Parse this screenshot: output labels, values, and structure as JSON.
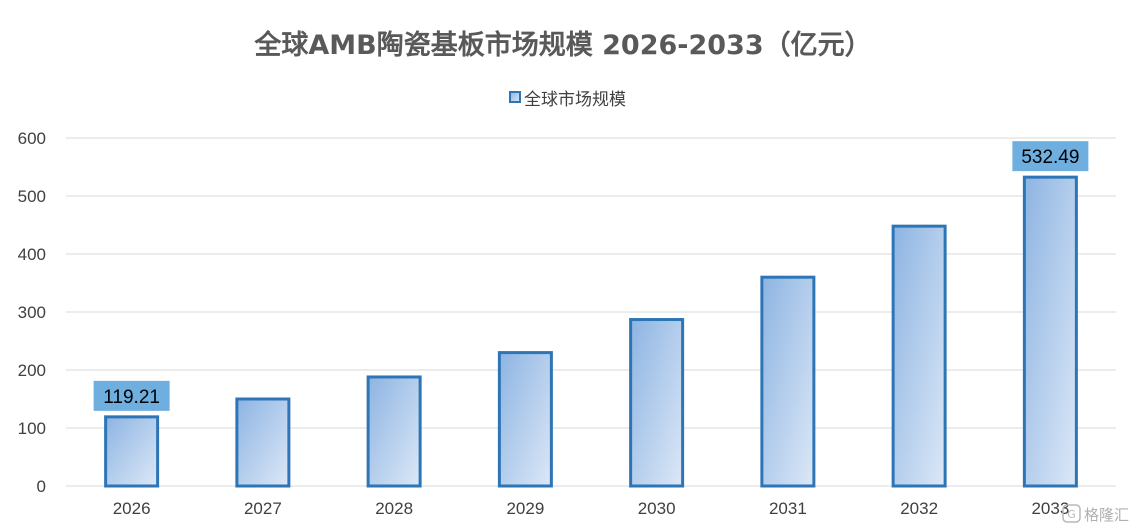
{
  "chart_data": {
    "type": "bar",
    "title": "全球AMB陶瓷基板市场规模 2026-2033（亿元）",
    "categories": [
      "2026",
      "2027",
      "2028",
      "2029",
      "2030",
      "2031",
      "2032",
      "2033"
    ],
    "series": [
      {
        "name": "全球市场规模",
        "values": [
          119.21,
          150,
          188,
          230,
          287,
          360,
          448,
          532.49
        ],
        "data_labels": [
          "119.21",
          "",
          "",
          "",
          "",
          "",
          "",
          "532.49"
        ]
      }
    ],
    "xlabel": "",
    "ylabel": "",
    "ylim": [
      0,
      600
    ],
    "yticks": [
      "0",
      "100",
      "200",
      "300",
      "400",
      "500",
      "600"
    ],
    "grid": true,
    "legend_position": "top-center",
    "colors": {
      "bar_border": "#2E75B6",
      "bar_fill_start": "#8DB4E2",
      "bar_fill_end": "#DCE8F7",
      "label_bg": "#6FAFE0",
      "gridline": "#D9D9D9"
    }
  },
  "watermark": {
    "text": "格隆汇"
  }
}
